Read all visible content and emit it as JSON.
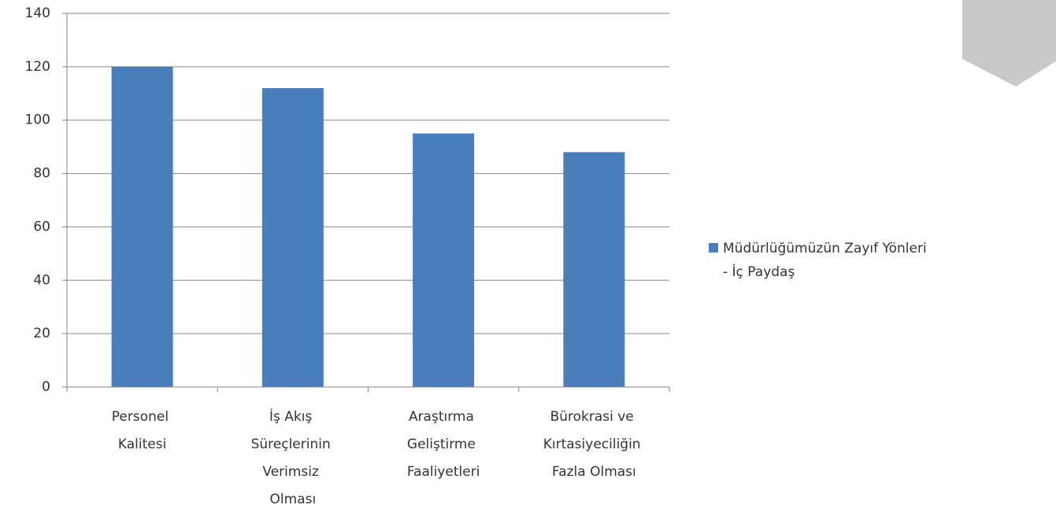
{
  "chart_data": {
    "type": "bar",
    "categories": [
      "Personel Kalitesi",
      "İş Akış Süreçlerinin Verimsiz Olması",
      "Araştırma Geliştirme Faaliyetleri",
      "Bürokrasi ve Kırtasiyeciliğin Fazla Olması"
    ],
    "series": [
      {
        "name": "Müdürlüğümüzün Zayıf Yönleri - İç Paydaş",
        "color": "#4a7ebb",
        "values": [
          120,
          112,
          95,
          88
        ]
      }
    ],
    "ylim": [
      0,
      140
    ],
    "yticks": [
      0,
      20,
      40,
      60,
      80,
      100,
      120,
      140
    ],
    "grid": true,
    "legend": "right"
  }
}
